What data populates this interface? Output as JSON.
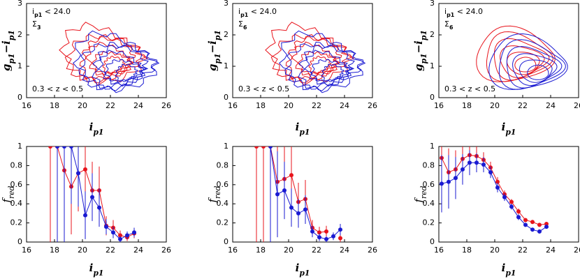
{
  "chart_data": [
    {
      "type": "contour",
      "colors": [
        "#e8141c",
        "#1a1ad2"
      ],
      "xlim": [
        16,
        26
      ],
      "xticks": [
        16,
        18,
        20,
        22,
        24,
        26
      ],
      "ylim": [
        0,
        3
      ],
      "yticks": [
        0,
        1,
        2,
        3
      ],
      "x_label": [
        "i",
        "p1"
      ],
      "y_label": [
        "g",
        "p1",
        "−i",
        "p1"
      ],
      "annotations": [
        [
          "i",
          "p1",
          " < 24.0"
        ],
        [
          "Σ",
          "3"
        ],
        [
          "0.3 < z < 0.5"
        ]
      ]
    },
    {
      "type": "contour",
      "colors": [
        "#e8141c",
        "#1a1ad2"
      ],
      "xlim": [
        16,
        26
      ],
      "xticks": [
        16,
        18,
        20,
        22,
        24,
        26
      ],
      "ylim": [
        0,
        3
      ],
      "yticks": [
        0,
        1,
        2,
        3
      ],
      "x_label": [
        "i",
        "p1"
      ],
      "y_label": [
        "g",
        "p1",
        "−i",
        "p1"
      ],
      "annotations": [
        [
          "i",
          "p1",
          " < 24.0"
        ],
        [
          "Σ",
          "6"
        ],
        [
          "0.3 < z < 0.5"
        ]
      ]
    },
    {
      "type": "contour",
      "colors": [
        "#e8141c",
        "#1a1ad2"
      ],
      "xlim": [
        16,
        26
      ],
      "xticks": [
        16,
        18,
        20,
        22,
        24,
        26
      ],
      "ylim": [
        0,
        3
      ],
      "yticks": [
        0,
        1,
        2,
        3
      ],
      "x_label": [
        "i",
        "p1"
      ],
      "y_label": [
        "g",
        "p1",
        "−i",
        "p1"
      ],
      "annotations": [
        [
          "i",
          "p1",
          " < 24.0"
        ],
        [
          "Σ",
          "6"
        ],
        [
          "0.3 < z < 0.5"
        ]
      ]
    },
    {
      "type": "line",
      "x": [
        17.7,
        18.2,
        18.7,
        19.2,
        19.7,
        20.2,
        20.7,
        21.2,
        21.7,
        22.2,
        22.7,
        23.2,
        23.7
      ],
      "xlim": [
        16,
        26
      ],
      "xticks": [
        16,
        18,
        20,
        22,
        24,
        26
      ],
      "ylim": [
        0,
        1
      ],
      "yticks": [
        0,
        0.2,
        0.4,
        0.6,
        0.8,
        1
      ],
      "x_label": [
        "i",
        "p1"
      ],
      "y_label": [
        "f",
        "red"
      ],
      "series": [
        {
          "color": "#e8141c",
          "values": [
            1,
            1,
            0.75,
            0.58,
            0.72,
            0.76,
            0.54,
            0.54,
            0.17,
            0.15,
            0.07,
            0.05,
            0.09
          ],
          "errors": [
            1,
            1,
            0.6,
            0.5,
            0.4,
            0.35,
            0.3,
            0.25,
            0.1,
            0.08,
            0.05,
            0.04,
            0.05
          ]
        },
        {
          "color": "#1a1ad2",
          "values": [
            null,
            1,
            1,
            1,
            0.72,
            0.28,
            0.47,
            0.36,
            0.16,
            0.1,
            0.03,
            0.07,
            0.1
          ],
          "errors": [
            null,
            1,
            1,
            0.6,
            0.35,
            0.25,
            0.25,
            0.2,
            0.08,
            0.06,
            0.03,
            0.04,
            0.05
          ]
        }
      ]
    },
    {
      "type": "line",
      "x": [
        17.7,
        18.2,
        18.7,
        19.2,
        19.7,
        20.2,
        20.7,
        21.2,
        21.7,
        22.2,
        22.7,
        23.2,
        23.7
      ],
      "xlim": [
        16,
        26
      ],
      "xticks": [
        16,
        18,
        20,
        22,
        24,
        26
      ],
      "ylim": [
        0,
        1
      ],
      "yticks": [
        0,
        0.2,
        0.4,
        0.6,
        0.8,
        1
      ],
      "x_label": [
        "i",
        "p1"
      ],
      "y_label": [
        "f",
        "red"
      ],
      "series": [
        {
          "color": "#e8141c",
          "values": [
            1,
            1,
            1,
            0.63,
            0.66,
            0.7,
            0.42,
            0.45,
            0.15,
            0.1,
            0.11,
            null,
            0.04
          ],
          "errors": [
            1,
            1,
            0.7,
            0.5,
            0.35,
            0.3,
            0.2,
            0.2,
            0.08,
            0.06,
            0.06,
            null,
            0.04
          ]
        },
        {
          "color": "#1a1ad2",
          "values": [
            null,
            null,
            1,
            0.5,
            0.54,
            0.36,
            0.3,
            0.34,
            0.11,
            0.05,
            0.03,
            0.06,
            0.13
          ],
          "errors": [
            null,
            null,
            1,
            0.45,
            0.3,
            0.2,
            0.15,
            0.15,
            0.06,
            0.04,
            0.03,
            0.04,
            0.06
          ]
        }
      ]
    },
    {
      "type": "line",
      "x": [
        16.2,
        16.7,
        17.2,
        17.7,
        18.2,
        18.7,
        19.2,
        19.7,
        20.2,
        20.7,
        21.2,
        21.7,
        22.2,
        22.7,
        23.2,
        23.7
      ],
      "xlim": [
        16,
        26
      ],
      "xticks": [
        16,
        18,
        20,
        22,
        24,
        26
      ],
      "ylim": [
        0,
        1
      ],
      "yticks": [
        0,
        0.2,
        0.4,
        0.6,
        0.8,
        1
      ],
      "x_label": [
        "i",
        "p1"
      ],
      "y_label": [
        "f",
        "red"
      ],
      "series": [
        {
          "color": "#e8141c",
          "values": [
            0.88,
            0.73,
            0.76,
            0.87,
            0.91,
            0.9,
            0.86,
            0.78,
            0.63,
            0.5,
            0.42,
            0.32,
            0.23,
            0.21,
            0.18,
            0.19
          ],
          "errors": [
            0.3,
            0.25,
            0.2,
            0.15,
            0.12,
            0.1,
            0.08,
            0.06,
            0.05,
            0.04,
            0.03,
            0.03,
            0.02,
            0.02,
            0.02,
            0.02
          ]
        },
        {
          "color": "#1a1ad2",
          "values": [
            0.61,
            0.63,
            0.67,
            0.76,
            0.83,
            0.83,
            0.81,
            0.73,
            0.57,
            0.47,
            0.37,
            0.26,
            0.18,
            0.13,
            0.11,
            0.16
          ],
          "errors": [
            0.3,
            0.28,
            0.22,
            0.16,
            0.13,
            0.1,
            0.08,
            0.06,
            0.05,
            0.04,
            0.03,
            0.03,
            0.02,
            0.02,
            0.02,
            0.02
          ]
        }
      ]
    }
  ]
}
